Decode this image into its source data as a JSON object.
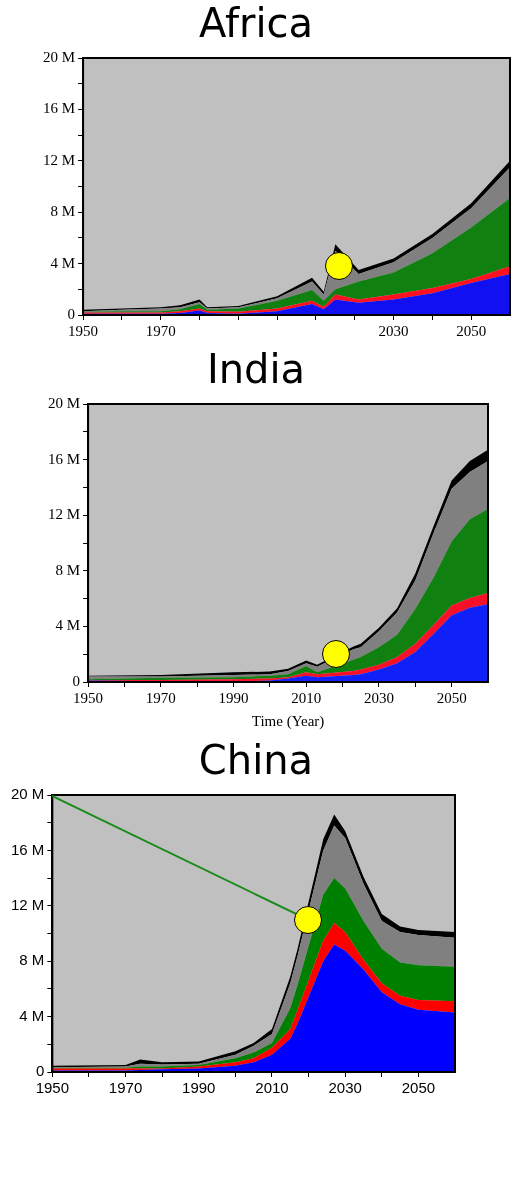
{
  "chart_data": [
    {
      "type": "area",
      "title": "Africa",
      "stacked": true,
      "x": [
        1950,
        1960,
        1970,
        1975,
        1980,
        1982,
        1990,
        2000,
        2009,
        2012,
        2015,
        2021,
        2030,
        2040,
        2050,
        2060
      ],
      "xlim": [
        1950,
        2060
      ],
      "xticks": [
        1950,
        {
          "value": 1960,
          "label": null
        },
        1970,
        {
          "value": 1980,
          "label": null
        },
        {
          "value": 1990,
          "label": null
        },
        {
          "value": 2000,
          "label": null
        },
        {
          "value": 2010,
          "label": null
        },
        {
          "value": 2020,
          "label": null
        },
        2030,
        {
          "value": 2040,
          "label": null
        },
        2050
      ],
      "ylim": [
        0,
        20
      ],
      "yticks": [
        {
          "value": 0,
          "label": "0"
        },
        {
          "value": 2,
          "label": null
        },
        {
          "value": 4,
          "label": "4 M"
        },
        {
          "value": 6,
          "label": null
        },
        {
          "value": 8,
          "label": "8 M"
        },
        {
          "value": 10,
          "label": null
        },
        {
          "value": 12,
          "label": "12 M"
        },
        {
          "value": 14,
          "label": null
        },
        {
          "value": 16,
          "label": "16 M"
        },
        {
          "value": 18,
          "label": null
        },
        {
          "value": 20,
          "label": "20 M"
        }
      ],
      "series": [
        {
          "color": "#1010f0",
          "values": [
            0.1,
            0.1,
            0.1,
            0.15,
            0.35,
            0.15,
            0.1,
            0.3,
            0.85,
            0.45,
            1.2,
            0.95,
            1.2,
            1.7,
            2.5,
            3.2
          ]
        },
        {
          "color": "#ff1020",
          "values": [
            0.1,
            0.1,
            0.1,
            0.15,
            0.15,
            0.15,
            0.15,
            0.2,
            0.25,
            0.2,
            0.4,
            0.25,
            0.4,
            0.4,
            0.3,
            0.6
          ]
        },
        {
          "color": "#108010",
          "values": [
            0.05,
            0.1,
            0.1,
            0.15,
            0.35,
            0.1,
            0.25,
            0.6,
            0.85,
            0.45,
            0.4,
            1.4,
            1.7,
            2.7,
            4.0,
            5.3
          ]
        },
        {
          "color": "#808080",
          "values": [
            0.05,
            0.1,
            0.2,
            0.15,
            0.15,
            0.1,
            0.1,
            0.2,
            0.65,
            0.5,
            3.0,
            0.6,
            0.8,
            1.2,
            1.5,
            2.4
          ]
        },
        {
          "color": "#000000",
          "values": [
            0.1,
            0.1,
            0.1,
            0.15,
            0.2,
            0.1,
            0.1,
            0.15,
            0.3,
            0.2,
            0.5,
            0.3,
            0.3,
            0.3,
            0.4,
            0.5
          ]
        }
      ]
    },
    {
      "type": "area",
      "title": "India",
      "xlabel": "Time (Year)",
      "stacked": true,
      "x": [
        1950,
        1970,
        1990,
        2000,
        2005,
        2010,
        2013,
        2023,
        2025,
        2030,
        2035,
        2040,
        2045,
        2050,
        2055,
        2060
      ],
      "xlim": [
        1950,
        2060
      ],
      "xticks": [
        1950,
        {
          "value": 1960,
          "label": null
        },
        1970,
        {
          "value": 1980,
          "label": null
        },
        1990,
        {
          "value": 2000,
          "label": null
        },
        2010,
        {
          "value": 2020,
          "label": null
        },
        2030,
        {
          "value": 2040,
          "label": null
        },
        2050
      ],
      "ylim": [
        0,
        20
      ],
      "yticks": [
        {
          "value": 0,
          "label": "0"
        },
        {
          "value": 2,
          "label": null
        },
        {
          "value": 4,
          "label": "4 M"
        },
        {
          "value": 6,
          "label": null
        },
        {
          "value": 8,
          "label": "8 M"
        },
        {
          "value": 10,
          "label": null
        },
        {
          "value": 12,
          "label": "12 M"
        },
        {
          "value": 14,
          "label": null
        },
        {
          "value": 16,
          "label": "16 M"
        },
        {
          "value": 18,
          "label": null
        },
        {
          "value": 20,
          "label": "20 M"
        }
      ],
      "series": [
        {
          "color": "#1020f8",
          "values": [
            0.1,
            0.05,
            0.05,
            0.1,
            0.25,
            0.45,
            0.35,
            0.5,
            0.55,
            0.9,
            1.35,
            2.15,
            3.45,
            4.8,
            5.35,
            5.6
          ]
        },
        {
          "color": "#f81028",
          "values": [
            0.05,
            0.1,
            0.15,
            0.15,
            0.1,
            0.25,
            0.2,
            0.3,
            0.35,
            0.35,
            0.45,
            0.6,
            0.65,
            0.7,
            0.7,
            0.8
          ]
        },
        {
          "color": "#108010",
          "values": [
            0.05,
            0.15,
            0.15,
            0.2,
            0.2,
            0.45,
            0.15,
            0.8,
            0.9,
            1.25,
            1.6,
            2.5,
            3.4,
            4.6,
            5.65,
            6.05
          ]
        },
        {
          "color": "#808080",
          "values": [
            0.2,
            0.1,
            0.15,
            0.1,
            0.25,
            0.2,
            0.4,
            0.75,
            0.7,
            1.15,
            1.6,
            2.05,
            3.2,
            3.8,
            3.4,
            3.45
          ]
        },
        {
          "color": "#000000",
          "values": [
            0.05,
            0.1,
            0.2,
            0.2,
            0.15,
            0.2,
            0.15,
            0.2,
            0.25,
            0.25,
            0.3,
            0.5,
            0.5,
            0.6,
            0.8,
            0.8
          ]
        }
      ]
    },
    {
      "type": "area",
      "title": "China",
      "stacked": true,
      "x": [
        1950,
        1970,
        1974,
        1980,
        1990,
        2000,
        2005,
        2010,
        2015,
        2017,
        2024,
        2027,
        2030,
        2035,
        2040,
        2045,
        2050,
        2060
      ],
      "xlim": [
        1950,
        2060
      ],
      "xticks": [
        1950,
        {
          "value": 1960,
          "label": null
        },
        1970,
        {
          "value": 1980,
          "label": null
        },
        1990,
        {
          "value": 2000,
          "label": null
        },
        2010,
        {
          "value": 2020,
          "label": null
        },
        2030,
        {
          "value": 2040,
          "label": null
        },
        2050
      ],
      "ylim": [
        0,
        20
      ],
      "yticks": [
        {
          "value": 0,
          "label": "0"
        },
        {
          "value": 2,
          "label": null
        },
        {
          "value": 4,
          "label": "4 M"
        },
        {
          "value": 6,
          "label": null
        },
        {
          "value": 8,
          "label": "8 M"
        },
        {
          "value": 10,
          "label": null
        },
        {
          "value": 12,
          "label": "12 M"
        },
        {
          "value": 14,
          "label": null
        },
        {
          "value": 16,
          "label": "16 M"
        },
        {
          "value": 18,
          "label": null
        },
        {
          "value": 20,
          "label": "20 M"
        }
      ],
      "series": [
        {
          "color": "#0000ff",
          "values": [
            0.1,
            0.1,
            0.15,
            0.2,
            0.25,
            0.45,
            0.7,
            1.25,
            2.4,
            3.5,
            8.0,
            9.2,
            8.75,
            7.4,
            5.75,
            4.9,
            4.5,
            4.3
          ]
        },
        {
          "color": "#ff0000",
          "values": [
            0.15,
            0.15,
            0.1,
            0.05,
            0.15,
            0.25,
            0.3,
            0.5,
            0.7,
            1.0,
            1.5,
            1.55,
            1.35,
            0.7,
            0.65,
            0.6,
            0.7,
            0.8
          ]
        },
        {
          "color": "#008000",
          "values": [
            0.05,
            0.05,
            0.15,
            0.15,
            0.1,
            0.3,
            0.4,
            0.35,
            1.5,
            1.8,
            3.3,
            3.25,
            3.15,
            2.8,
            2.5,
            2.4,
            2.5,
            2.5
          ]
        },
        {
          "color": "#808080",
          "values": [
            0.05,
            0.1,
            0.2,
            0.15,
            0.1,
            0.25,
            0.5,
            0.65,
            1.8,
            2.1,
            3.2,
            3.8,
            3.65,
            2.7,
            2.0,
            2.2,
            2.2,
            2.1
          ]
        },
        {
          "color": "#000000",
          "values": [
            0.1,
            0.1,
            0.3,
            0.15,
            0.15,
            0.25,
            0.2,
            0.35,
            0.5,
            0.5,
            0.8,
            0.8,
            0.5,
            0.5,
            0.5,
            0.4,
            0.35,
            0.4
          ]
        }
      ]
    }
  ]
}
